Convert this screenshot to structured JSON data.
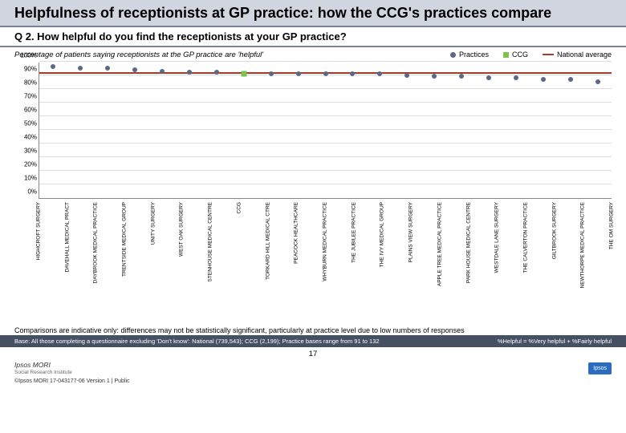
{
  "title": "Helpfulness of receptionists at GP practice: how the CCG's practices compare",
  "question": "Q 2. How helpful do you find the receptionists at your GP practice?",
  "subtitle": "Percentage of patients saying receptionists at the GP practice are 'helpful'",
  "legend": {
    "practices": "Practices",
    "ccg": "CCG",
    "national": "National average"
  },
  "chart": {
    "type": "scatter",
    "ylim": [
      0,
      100
    ],
    "ytick_step": 10,
    "yticks": [
      "0%",
      "10%",
      "20%",
      "30%",
      "40%",
      "50%",
      "60%",
      "70%",
      "80%",
      "90%",
      "100%"
    ],
    "national_avg": 91,
    "ccg_index": 7,
    "ccg_value": 91,
    "colors": {
      "practices": "#5a6a85",
      "ccg": "#7fc24b",
      "national": "#a43b2c",
      "grid": "#dddddd",
      "axis": "#888888"
    },
    "categories": [
      "HIGHCROFT SURGERY",
      "DAVEHALL MEDICAL PRACT",
      "DAYBROOK MEDICAL PRACTICE",
      "TRENTSIDE MEDICAL GROUP",
      "UNITY SURGERY",
      "WEST OAK SURGERY",
      "STENHOUSE MEDICAL CENTRE",
      "CCG",
      "TORKARD HILL MEDICAL CTRE",
      "PEACOCK HEALTHCARE",
      "WHYBURN MEDICAL PRACTICE",
      "THE JUBILEE PRACTICE",
      "THE IVY MEDICAL GROUP",
      "PLAINS VIEW SURGERY",
      "APPLE TREE MEDICAL PRACTICE",
      "PARK HOUSE MEDICAL CENTRE",
      "WESTDALE LANE SURGERY",
      "THE CALVERTON PRACTICE",
      "GILTBROOK SURGERY",
      "NEWTHORPE MEDICAL PRACTICE",
      "THE OM SURGERY"
    ],
    "values": [
      96,
      95,
      95,
      94,
      93,
      92,
      92,
      91,
      91,
      91,
      91,
      91,
      91,
      90,
      89,
      89,
      88,
      88,
      87,
      87,
      85
    ]
  },
  "caption": "Comparisons are indicative only: differences may not be statistically significant, particularly at practice level due to low numbers of responses",
  "footer_left": "Base: All those completing a questionnaire excluding 'Don't know': National (739,543); CCG (2,199); Practice bases range from 91 to 132",
  "footer_right": "%Helpful = %Very helpful + %Fairly helpful",
  "page_number": "17",
  "copyright": "©Ipsos MORI    17-043177-06 Version 1 | Public",
  "brand_main": "Ipsos MORI",
  "brand_sub": "Social Research Institute",
  "logo_text": "Ipsos"
}
